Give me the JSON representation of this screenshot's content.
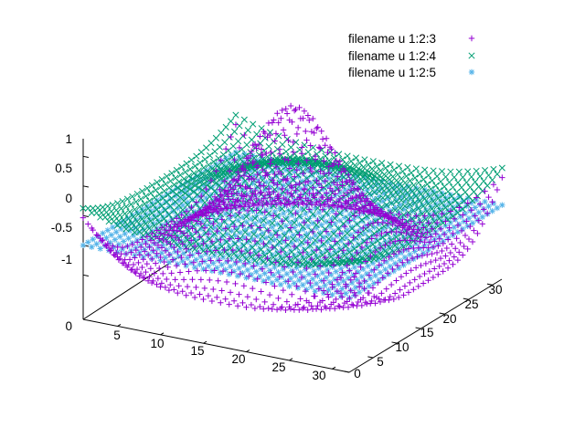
{
  "chart_data": {
    "type": "scatter",
    "title": "",
    "projection": "3d",
    "grid": false,
    "legend_position": "top-right",
    "x_range": [
      1,
      32
    ],
    "y_range": [
      0,
      32
    ],
    "z_range": [
      -1.75,
      1.4
    ],
    "x_ticks": [
      "5",
      "10",
      "15",
      "20",
      "25",
      "30"
    ],
    "y_ticks": [
      "0",
      "5",
      "10",
      "15",
      "20",
      "25",
      "30"
    ],
    "z_ticks": [
      "1",
      "0.5",
      "0",
      "-0.5",
      "-1"
    ],
    "base_label": "0",
    "grid_points": {
      "u_start": 1,
      "u_end": 32,
      "v_start": 0,
      "v_end": 32,
      "count": 32
    },
    "series": [
      {
        "name": "filename u 1:2:3",
        "marker": "plus",
        "color": "#9400d3",
        "formula": "0.5 * sin(r) / r + cos(r/3), r = sqrt((u-16.5)^2 + (v-16)^2) / 1.6"
      },
      {
        "name": "filename u 1:2:4",
        "marker": "cross",
        "color": "#009e73",
        "formula": "0.35 * cos(r/3) + 0.15, r = sqrt((u-16.5)^2 + (v-16)^2) / 1.6"
      },
      {
        "name": "filename u 1:2:5",
        "marker": "star",
        "color": "#56b4e9",
        "formula": "-0.5 (constant plane)"
      }
    ]
  }
}
